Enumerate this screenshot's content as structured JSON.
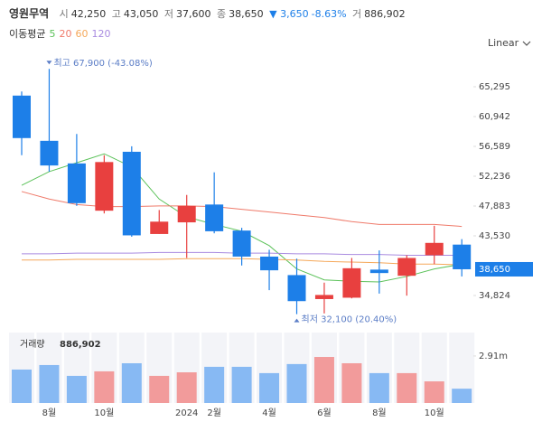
{
  "header": {
    "name": "영원무역",
    "open_label": "시",
    "open": "42,250",
    "high_label": "고",
    "high": "43,050",
    "low_label": "저",
    "low": "37,600",
    "close_label": "종",
    "close": "38,650",
    "change": "▼ 3,650",
    "change_pct": "-8.63%",
    "volume_label": "거",
    "volume": "886,902"
  },
  "chart_data": {
    "type": "candlestick",
    "categories": [
      null,
      "8월",
      null,
      "10월",
      null,
      null,
      "2024",
      "2월",
      null,
      "4월",
      null,
      "6월",
      null,
      "8월",
      null,
      "10월",
      null
    ],
    "open": [
      64000,
      57400,
      54100,
      47200,
      55800,
      43800,
      45500,
      48100,
      44300,
      40500,
      37800,
      34300,
      34500,
      38600,
      37700,
      40700,
      42250
    ],
    "high": [
      64600,
      67900,
      58400,
      55300,
      56600,
      47300,
      49500,
      52800,
      44700,
      41500,
      40200,
      36700,
      40300,
      41400,
      40700,
      45000,
      43050
    ],
    "low": [
      55300,
      52900,
      47900,
      46800,
      43400,
      43800,
      40300,
      43900,
      39200,
      35600,
      32100,
      32200,
      34400,
      35100,
      34800,
      39400,
      37600
    ],
    "close": [
      57800,
      53800,
      48300,
      54300,
      43600,
      45600,
      47900,
      44200,
      40500,
      38500,
      34000,
      34900,
      38800,
      38100,
      40300,
      42500,
      38650
    ],
    "up_color": "#e8403f",
    "down_color": "#1d7fe8",
    "ylim": [
      30470,
      70040
    ],
    "yticks": [
      {
        "value": 65295,
        "label": "65,295"
      },
      {
        "value": 60942,
        "label": "60,942"
      },
      {
        "value": 56589,
        "label": "56,589"
      },
      {
        "value": 52236,
        "label": "52,236"
      },
      {
        "value": 47883,
        "label": "47,883"
      },
      {
        "value": 43530,
        "label": "43,530"
      },
      {
        "value": 34824,
        "label": "34,824"
      }
    ],
    "price_marker": {
      "value": 38650,
      "label": "38,650"
    },
    "scale": "Linear",
    "ma_title": "이동평균",
    "moving_averages": [
      {
        "name": "5",
        "color": "#5cc25a",
        "values": [
          50900,
          52900,
          54200,
          55500,
          53600,
          48900,
          46300,
          45200,
          44200,
          42100,
          38700,
          37100,
          36900,
          36800,
          37600,
          38700,
          39400
        ]
      },
      {
        "name": "20",
        "color": "#ef7a6a",
        "values": [
          50000,
          48900,
          48100,
          47800,
          47800,
          47900,
          47900,
          47800,
          47400,
          47000,
          46600,
          46200,
          45600,
          45200,
          45200,
          45200,
          44900
        ]
      },
      {
        "name": "60",
        "color": "#f5a85a",
        "values": [
          40000,
          40000,
          40100,
          40100,
          40100,
          40100,
          40200,
          40200,
          40200,
          40100,
          40000,
          39800,
          39700,
          39600,
          39400,
          39400,
          39300
        ]
      },
      {
        "name": "120",
        "color": "#a98be0",
        "values": [
          40900,
          40900,
          41000,
          41000,
          41000,
          41100,
          41100,
          41100,
          41000,
          41000,
          40900,
          40900,
          40800,
          40800,
          40700,
          40700,
          40700
        ]
      }
    ],
    "annotations": [
      {
        "label": "최고 67,900 (-43.08%)",
        "value": 67900,
        "kind": "high"
      },
      {
        "label": "최저 32,100 (20.40%)",
        "value": 32100,
        "kind": "low"
      }
    ],
    "volume": {
      "title": "거래량",
      "last_label": "886,902",
      "values": [
        2070000,
        2350000,
        1680000,
        1960000,
        2460000,
        1680000,
        1900000,
        2240000,
        2240000,
        1850000,
        2410000,
        2850000,
        2460000,
        1850000,
        1850000,
        1340000,
        886902
      ],
      "ylim": [
        0,
        4360000
      ],
      "yticks": [
        {
          "value": 2910000,
          "label": "2.91m"
        }
      ],
      "up_color": "#f29b9b",
      "down_color": "#87b9f3"
    }
  }
}
